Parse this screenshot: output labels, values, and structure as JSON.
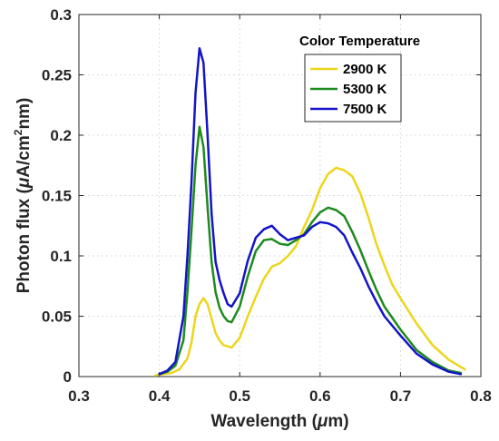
{
  "chart_data": {
    "type": "line",
    "xlabel": "Wavelength (μm)",
    "ylabel_parts": {
      "prefix": "Photon flux (",
      "mu": "μ",
      "mid": "A/cm",
      "sup": "2",
      "suffix": "nm)"
    },
    "xlabel_parts": {
      "prefix": "Wavelength (",
      "mu": "μ",
      "suffix": "m)"
    },
    "xlim": [
      0.3,
      0.8
    ],
    "ylim": [
      0,
      0.3
    ],
    "xticks": [
      0.3,
      0.4,
      0.5,
      0.6,
      0.7,
      0.8
    ],
    "xtick_labels": [
      "0.3",
      "0.4",
      "0.5",
      "0.6",
      "0.7",
      "0.8"
    ],
    "yticks": [
      0,
      0.05,
      0.1,
      0.15,
      0.2,
      0.25,
      0.3
    ],
    "ytick_labels": [
      "0",
      "0.05",
      "0.1",
      "0.15",
      "0.2",
      "0.25",
      "0.3"
    ],
    "grid": true,
    "legend": {
      "title": "Color Temperature",
      "placement": "top-right",
      "boxed": true
    },
    "series": [
      {
        "name": "2900 K",
        "color": "#EDD51B",
        "x": [
          0.395,
          0.405,
          0.415,
          0.425,
          0.435,
          0.44,
          0.445,
          0.45,
          0.455,
          0.46,
          0.465,
          0.47,
          0.475,
          0.48,
          0.49,
          0.5,
          0.51,
          0.52,
          0.53,
          0.54,
          0.55,
          0.56,
          0.57,
          0.58,
          0.59,
          0.6,
          0.61,
          0.62,
          0.63,
          0.64,
          0.65,
          0.66,
          0.67,
          0.68,
          0.69,
          0.7,
          0.72,
          0.74,
          0.76,
          0.78
        ],
        "y": [
          0.001,
          0.002,
          0.003,
          0.006,
          0.015,
          0.028,
          0.05,
          0.06,
          0.065,
          0.06,
          0.048,
          0.036,
          0.03,
          0.026,
          0.024,
          0.032,
          0.05,
          0.066,
          0.081,
          0.091,
          0.094,
          0.1,
          0.108,
          0.124,
          0.138,
          0.156,
          0.168,
          0.173,
          0.171,
          0.166,
          0.152,
          0.132,
          0.11,
          0.092,
          0.076,
          0.065,
          0.044,
          0.026,
          0.014,
          0.006
        ]
      },
      {
        "name": "5300 K",
        "color": "#1E8A1E",
        "x": [
          0.4,
          0.41,
          0.42,
          0.43,
          0.435,
          0.44,
          0.445,
          0.45,
          0.455,
          0.46,
          0.465,
          0.47,
          0.475,
          0.48,
          0.485,
          0.49,
          0.5,
          0.51,
          0.52,
          0.53,
          0.54,
          0.55,
          0.56,
          0.57,
          0.58,
          0.59,
          0.6,
          0.61,
          0.62,
          0.63,
          0.64,
          0.65,
          0.66,
          0.67,
          0.68,
          0.7,
          0.72,
          0.74,
          0.76,
          0.775
        ],
        "y": [
          0.002,
          0.004,
          0.009,
          0.03,
          0.07,
          0.12,
          0.175,
          0.207,
          0.19,
          0.14,
          0.095,
          0.07,
          0.057,
          0.05,
          0.046,
          0.045,
          0.058,
          0.083,
          0.104,
          0.113,
          0.114,
          0.11,
          0.109,
          0.113,
          0.118,
          0.128,
          0.136,
          0.14,
          0.138,
          0.133,
          0.12,
          0.105,
          0.088,
          0.072,
          0.058,
          0.039,
          0.022,
          0.012,
          0.005,
          0.003
        ]
      },
      {
        "name": "7500 K",
        "color": "#1414C8",
        "x": [
          0.4,
          0.41,
          0.42,
          0.43,
          0.435,
          0.44,
          0.445,
          0.45,
          0.455,
          0.46,
          0.465,
          0.47,
          0.475,
          0.48,
          0.485,
          0.49,
          0.5,
          0.51,
          0.52,
          0.53,
          0.54,
          0.55,
          0.56,
          0.57,
          0.58,
          0.59,
          0.6,
          0.61,
          0.62,
          0.63,
          0.64,
          0.65,
          0.66,
          0.67,
          0.68,
          0.7,
          0.72,
          0.74,
          0.76,
          0.775
        ],
        "y": [
          0.002,
          0.005,
          0.012,
          0.05,
          0.1,
          0.16,
          0.235,
          0.272,
          0.26,
          0.2,
          0.135,
          0.095,
          0.08,
          0.069,
          0.06,
          0.058,
          0.069,
          0.096,
          0.115,
          0.122,
          0.125,
          0.118,
          0.113,
          0.115,
          0.117,
          0.124,
          0.128,
          0.127,
          0.124,
          0.117,
          0.103,
          0.09,
          0.075,
          0.062,
          0.05,
          0.034,
          0.019,
          0.01,
          0.004,
          0.002
        ]
      }
    ]
  }
}
